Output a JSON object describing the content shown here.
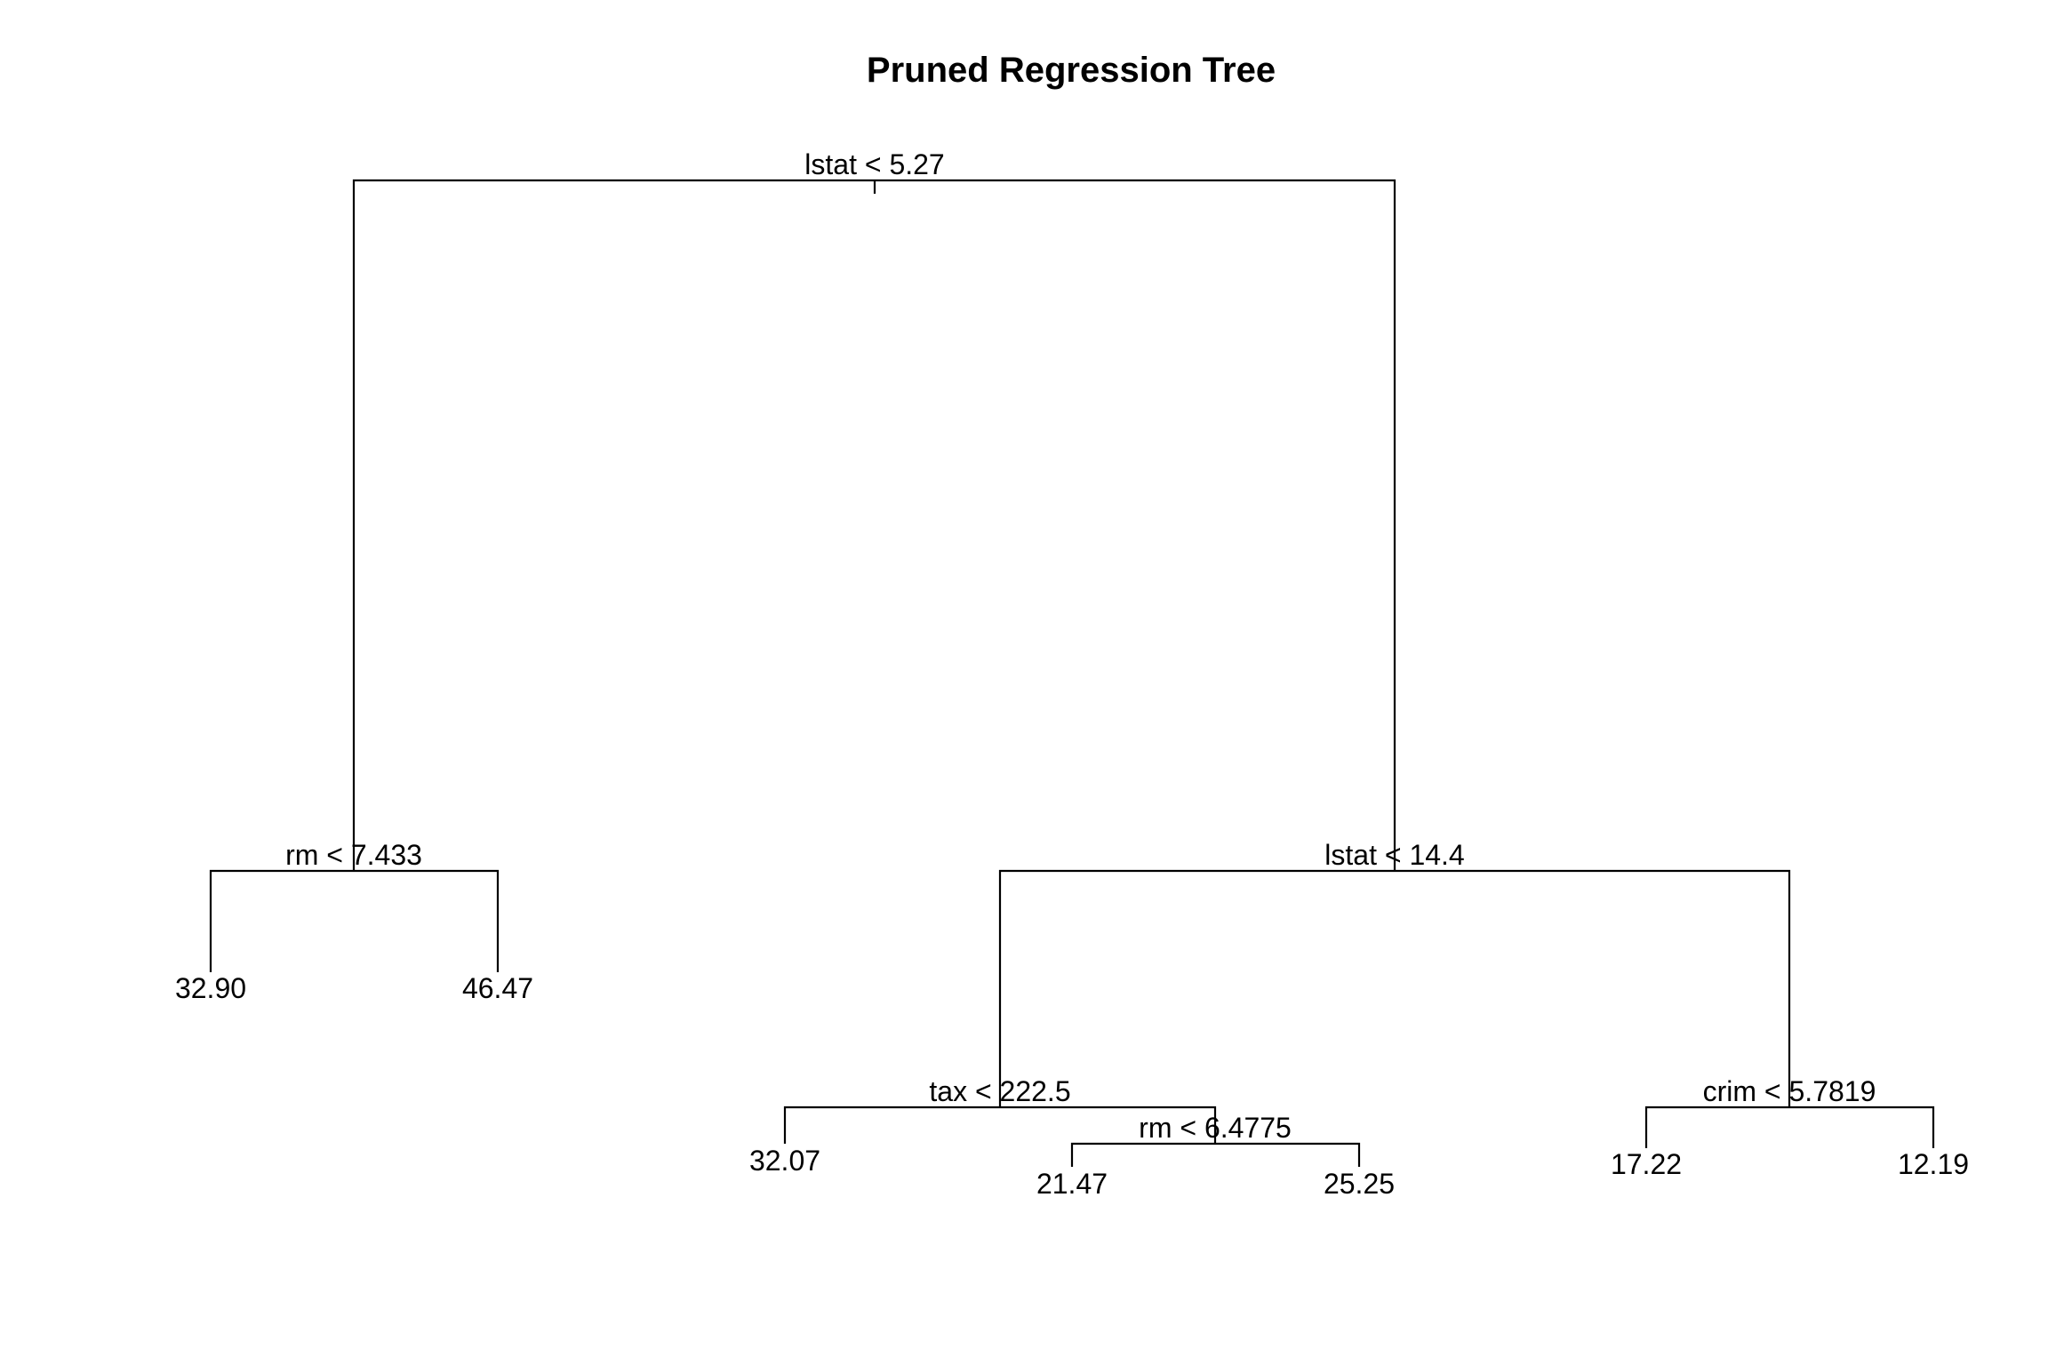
{
  "title": "Pruned Regression Tree",
  "colors": {
    "background": "#ffffff",
    "lines": "#000000",
    "text": "#000000"
  },
  "tree": {
    "root": {
      "split": "lstat < 5.27",
      "left": {
        "split": "rm < 7.433",
        "left": {
          "leaf": "32.90"
        },
        "right": {
          "leaf": "46.47"
        }
      },
      "right": {
        "split": "lstat < 14.4",
        "left": {
          "split": "tax < 222.5",
          "left": {
            "leaf": "32.07"
          },
          "right": {
            "split": "rm < 6.4775",
            "left": {
              "leaf": "21.47"
            },
            "right": {
              "leaf": "25.25"
            }
          }
        },
        "right": {
          "split": "crim < 5.7819",
          "left": {
            "leaf": "17.22"
          },
          "right": {
            "leaf": "12.19"
          }
        }
      }
    }
  }
}
